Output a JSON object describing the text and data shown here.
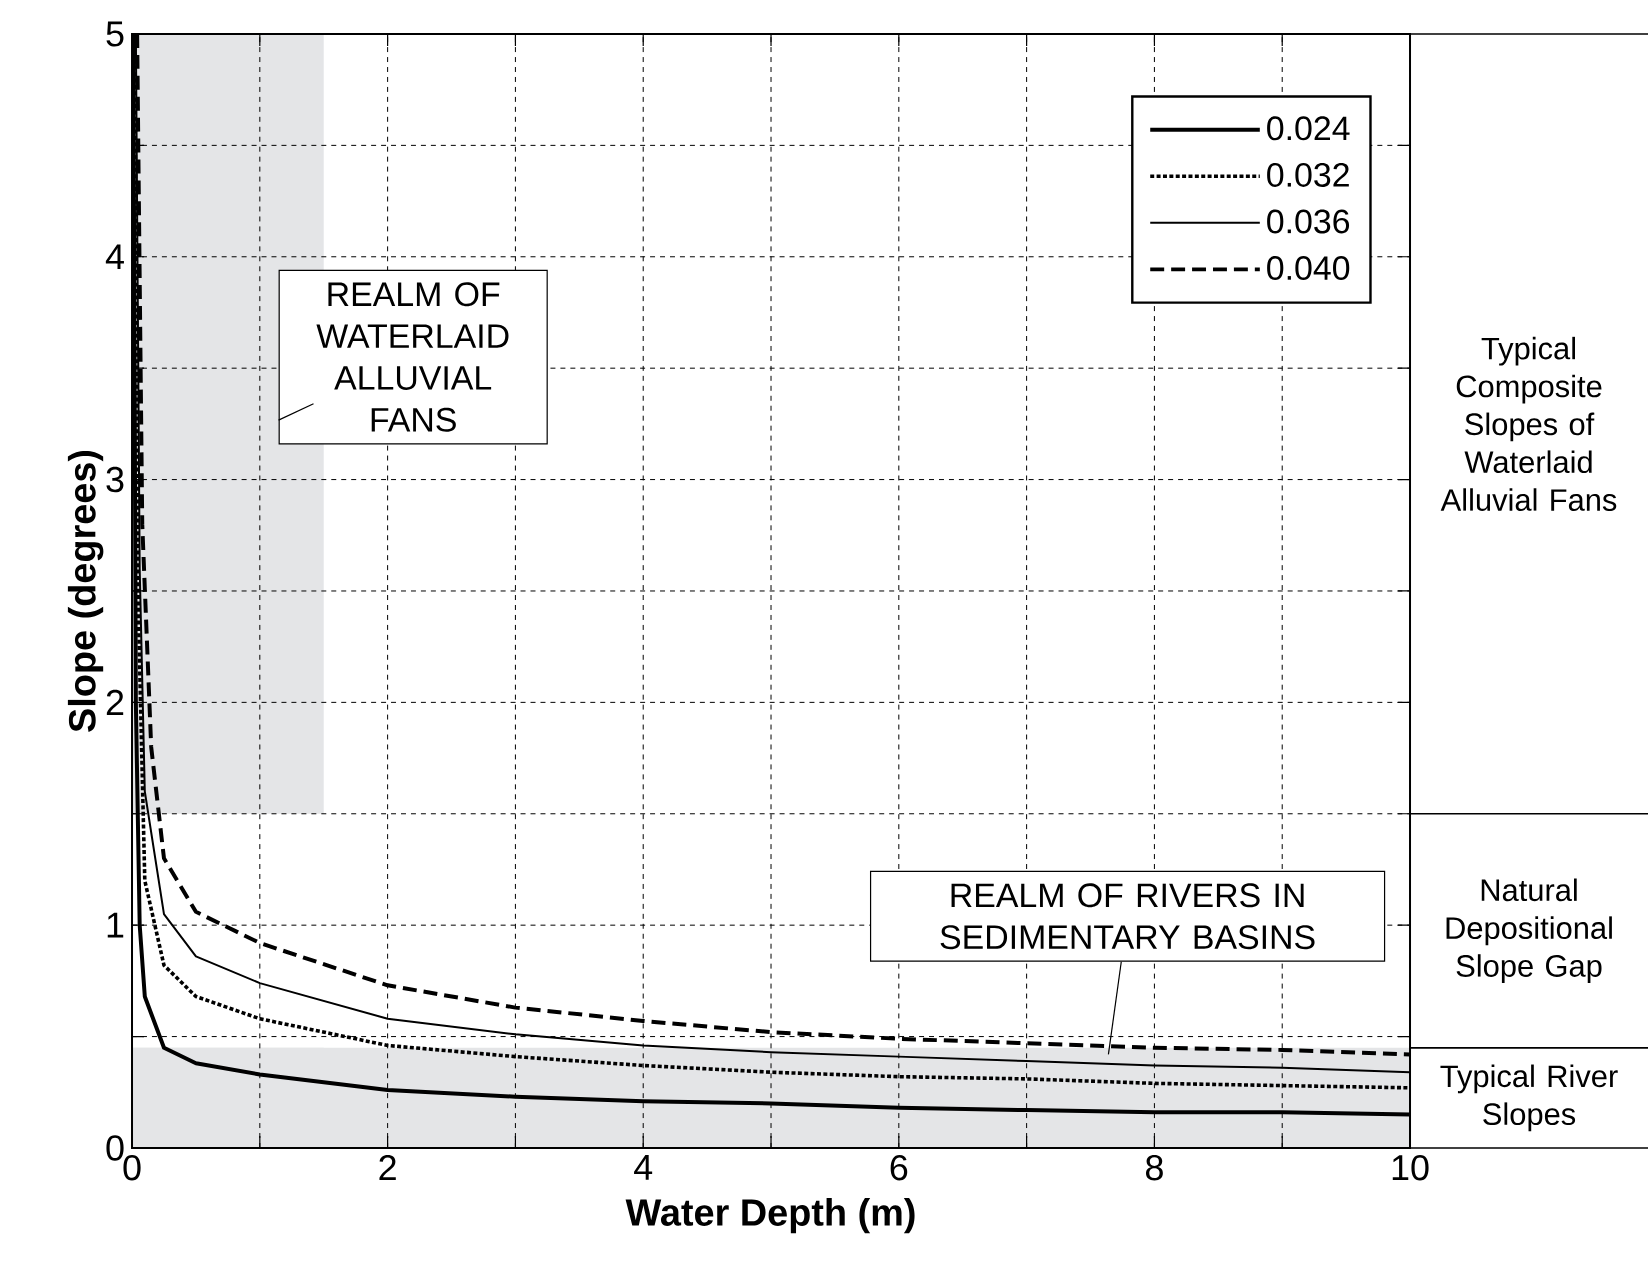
{
  "chart_data": {
    "type": "line",
    "xlabel": "Water Depth (m)",
    "ylabel": "Slope (degrees)",
    "xlim": [
      0,
      10
    ],
    "ylim": [
      0,
      5
    ],
    "xticks": [
      0,
      {
        "value": 1,
        "label": null
      },
      2,
      {
        "value": 3,
        "label": null
      },
      4,
      {
        "value": 5,
        "label": null
      },
      6,
      {
        "value": 7,
        "label": null
      },
      8,
      {
        "value": 9,
        "label": null
      },
      10
    ],
    "yticks": [
      0,
      {
        "value": 0.5,
        "label": null
      },
      1,
      {
        "value": 1.5,
        "label": null
      },
      2,
      {
        "value": 2.5,
        "label": null
      },
      3,
      {
        "value": 3.5,
        "label": null
      },
      4,
      {
        "value": 4.5,
        "label": null
      },
      5
    ],
    "grid": true,
    "legend": "top right",
    "marker": "none",
    "series": [
      {
        "name": "0.024",
        "color": "#000000",
        "line_style": "solid",
        "x": [
          0.01,
          0.03,
          0.06,
          0.1,
          0.25,
          0.5,
          1,
          2,
          3,
          4,
          5,
          6,
          7,
          8,
          9,
          10
        ],
        "values": [
          5.0,
          2.0,
          1.0,
          0.68,
          0.45,
          0.38,
          0.33,
          0.26,
          0.23,
          0.21,
          0.2,
          0.18,
          0.17,
          0.16,
          0.16,
          0.15
        ]
      },
      {
        "name": "0.032",
        "color": "#000000",
        "line_style": "dotted",
        "x": [
          0.02,
          0.05,
          0.1,
          0.25,
          0.5,
          1,
          2,
          3,
          4,
          5,
          6,
          7,
          8,
          9,
          10
        ],
        "values": [
          5.0,
          2.4,
          1.2,
          0.82,
          0.68,
          0.58,
          0.46,
          0.41,
          0.37,
          0.34,
          0.32,
          0.31,
          0.29,
          0.28,
          0.27
        ]
      },
      {
        "name": "0.036",
        "color": "#000000",
        "line_style": "solid",
        "x": [
          0.03,
          0.06,
          0.1,
          0.25,
          0.5,
          1,
          2,
          3,
          4,
          5,
          6,
          7,
          8,
          9,
          10
        ],
        "values": [
          5.0,
          2.6,
          1.6,
          1.05,
          0.86,
          0.74,
          0.58,
          0.51,
          0.46,
          0.43,
          0.41,
          0.39,
          0.37,
          0.36,
          0.34
        ]
      },
      {
        "name": "0.040",
        "color": "#000000",
        "line_style": "dashed",
        "x": [
          0.04,
          0.08,
          0.15,
          0.25,
          0.5,
          1,
          2,
          3,
          4,
          5,
          6,
          7,
          8,
          9,
          10
        ],
        "values": [
          5.0,
          2.8,
          1.8,
          1.3,
          1.06,
          0.92,
          0.73,
          0.63,
          0.57,
          0.52,
          0.49,
          0.47,
          0.45,
          0.44,
          0.42
        ]
      }
    ],
    "bands": [
      {
        "axis": "x",
        "from": 0,
        "to": 1.5,
        "color": "#e4e5e7"
      },
      {
        "axis": "y",
        "from": 0.45,
        "to": 1.5,
        "label": "Natural Depositional Slope Gap",
        "color": "#ffffff"
      },
      {
        "axis": "y",
        "from": 0,
        "to": 0.45,
        "label": "Typical River Slopes",
        "color": "#e4e5e7"
      }
    ],
    "annotations": [
      "REALM OF WATERLAID ALLUVIAL FANS",
      {
        "text": "REALM OF RIVERS IN SEDIMENTARY BASINS",
        "x": 7.64,
        "y": 0.42
      },
      "Typical Composite Slopes of Waterlaid Alluvial Fans"
    ]
  }
}
